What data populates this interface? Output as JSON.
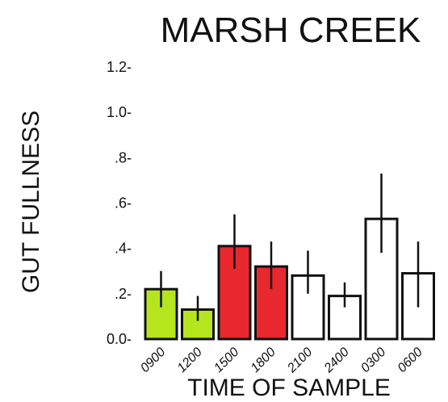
{
  "chart_data": {
    "type": "bar",
    "title": "MARSH CREEK",
    "xlabel": "TIME OF SAMPLE",
    "ylabel": "GUT FULLNESS",
    "categories": [
      "0900",
      "1200",
      "1500",
      "1800",
      "2100",
      "2400",
      "0300",
      "0600"
    ],
    "values": [
      0.22,
      0.13,
      0.41,
      0.32,
      0.28,
      0.19,
      0.53,
      0.29
    ],
    "error_low": [
      0.14,
      0.08,
      0.31,
      0.22,
      0.2,
      0.14,
      0.38,
      0.14
    ],
    "error_high": [
      0.3,
      0.19,
      0.55,
      0.43,
      0.39,
      0.25,
      0.73,
      0.43
    ],
    "bar_colors": [
      "#b5e61d",
      "#b5e61d",
      "#e8272e",
      "#e8272e",
      "#ffffff",
      "#ffffff",
      "#ffffff",
      "#ffffff"
    ],
    "yticks": [
      {
        "value": 0.0,
        "label": "0.0-"
      },
      {
        "value": 0.2,
        "label": ".2-"
      },
      {
        "value": 0.4,
        "label": ".4-"
      },
      {
        "value": 0.6,
        "label": ".6-"
      },
      {
        "value": 0.8,
        "label": ".8-"
      },
      {
        "value": 1.0,
        "label": "1.0-"
      },
      {
        "value": 1.2,
        "label": "1.2-"
      }
    ],
    "ylim": [
      0,
      1.2
    ],
    "grid": false,
    "legend": false
  }
}
